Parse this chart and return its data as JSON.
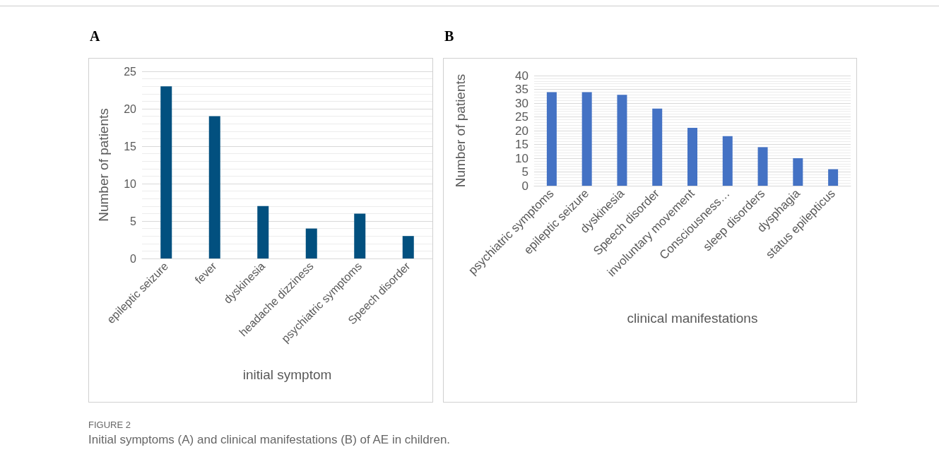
{
  "chart_data": [
    {
      "type": "bar",
      "title": "A",
      "xlabel": "initial symptom",
      "ylabel": "Number of patients",
      "categories": [
        "epileptic seizure",
        "fever",
        "dyskinesia",
        "headache dizziness",
        "psychiatric symptoms",
        "Speech disorder"
      ],
      "values": [
        23,
        19,
        7,
        4,
        6,
        3
      ],
      "color": "#02507f",
      "ylim": [
        0,
        25
      ],
      "yticks": [
        0,
        5,
        10,
        15,
        20,
        25
      ],
      "grid": true,
      "annotations": [
        "FIGURE 2",
        "Initial symptoms (A) and clinical manifestations (B) of AE in children."
      ]
    },
    {
      "type": "bar",
      "title": "B",
      "xlabel": "clinical manifestations",
      "ylabel": "Number of patients",
      "categories": [
        "psychiatric symptoms",
        "epileptic seizure",
        "dyskinesia",
        "Speech disorder",
        "involuntary movement",
        "Consciousness…",
        "sleep disorders",
        "dysphagia",
        "status epilepticus"
      ],
      "values": [
        34,
        34,
        33,
        28,
        21,
        18,
        14,
        10,
        6
      ],
      "color": "#4472c4",
      "ylim": [
        0,
        40
      ],
      "yticks": [
        0,
        5,
        10,
        15,
        20,
        25,
        30,
        35,
        40
      ],
      "grid": true
    }
  ]
}
